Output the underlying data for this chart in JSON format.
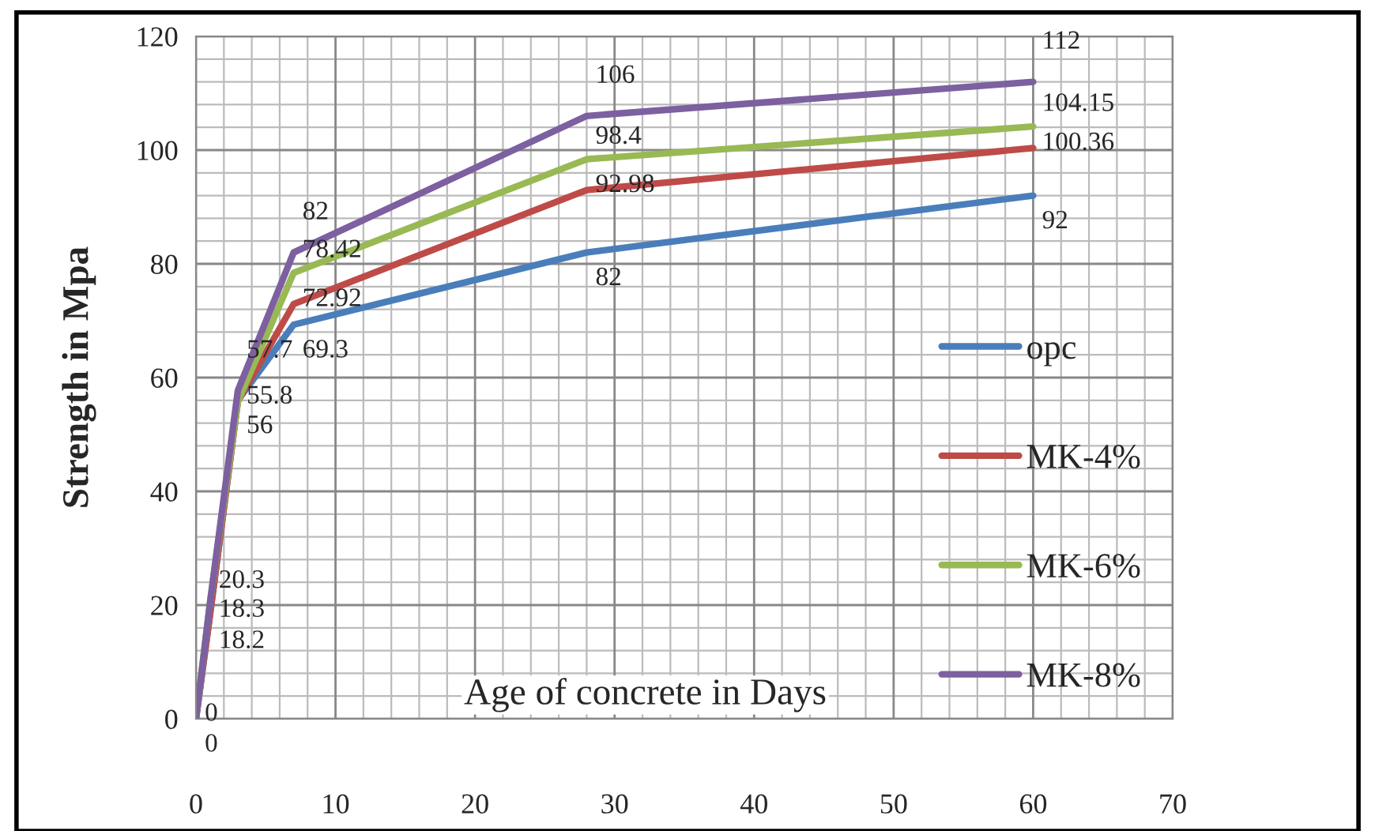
{
  "chart_data": {
    "type": "line",
    "xlabel": "Age of concrete in Days",
    "ylabel": "Strength in Mpa",
    "x": [
      0,
      1,
      3,
      7,
      28,
      60
    ],
    "series": [
      {
        "name": "opc",
        "color": "#4a7ebb",
        "values": [
          0,
          18.2,
          56,
          69.3,
          82,
          92
        ],
        "value_labels": [
          "0",
          "18.2",
          "56",
          "69.3",
          "82",
          "92"
        ]
      },
      {
        "name": "MK-4%",
        "color": "#be4b48",
        "values": [
          0,
          18.3,
          55.8,
          72.92,
          92.98,
          100.36
        ],
        "value_labels": [
          "0",
          "18.3",
          "55.8",
          "72.92",
          "92.98",
          "100.36"
        ]
      },
      {
        "name": "MK-6%",
        "color": "#98b954",
        "values": [
          0,
          20.3,
          55.8,
          78.42,
          98.4,
          104.15
        ],
        "value_labels": [
          null,
          "20.3",
          null,
          "78.42",
          "98.4",
          "104.15"
        ]
      },
      {
        "name": "MK-8%",
        "color": "#7d60a0",
        "values": [
          0,
          20.3,
          57.7,
          82,
          106,
          112
        ],
        "value_labels": [
          null,
          null,
          "57.7",
          "82",
          "106",
          "112"
        ]
      }
    ],
    "xlim": [
      0,
      70
    ],
    "xticks": [
      0,
      10,
      20,
      30,
      40,
      50,
      60,
      70
    ],
    "ylim": [
      0,
      120
    ],
    "yticks": [
      0,
      20,
      40,
      60,
      80,
      100,
      120
    ],
    "grid": true,
    "legend": "right",
    "marker": "none",
    "line_style": "solid"
  }
}
